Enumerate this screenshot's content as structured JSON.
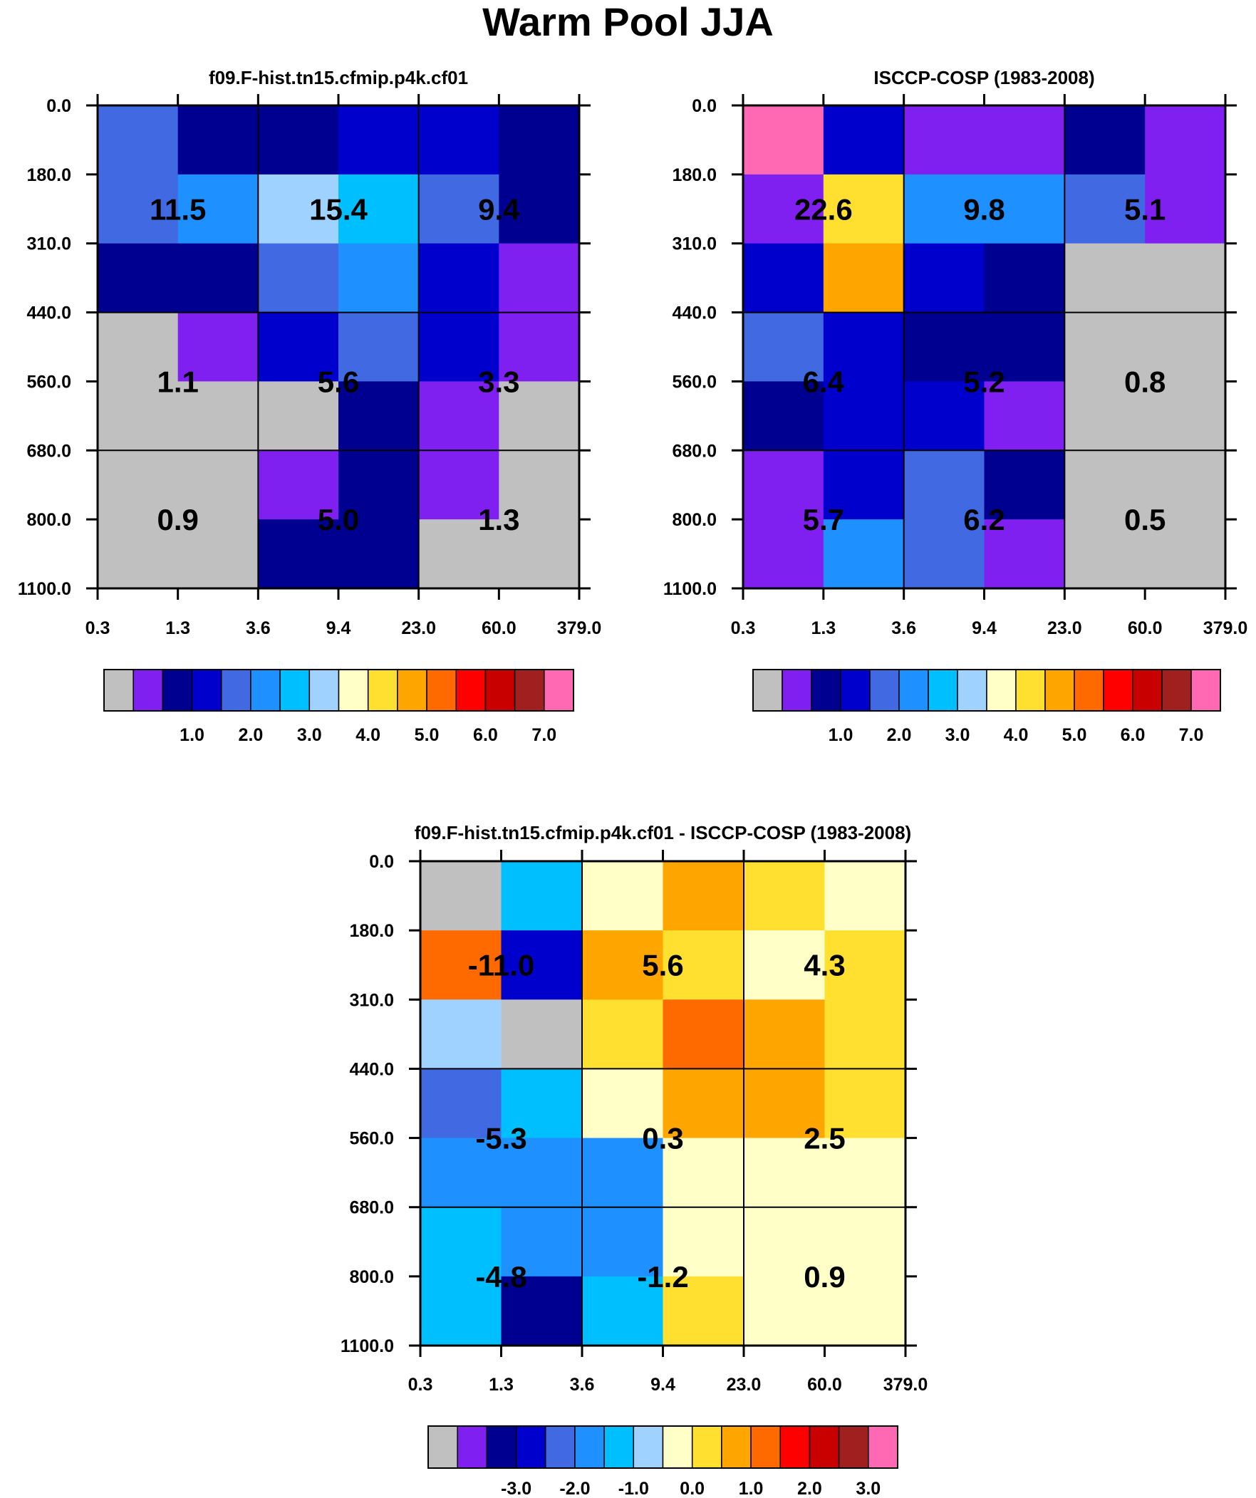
{
  "figure_title": "Warm Pool JJA",
  "chart_data": [
    {
      "type": "heatmap",
      "title": "f09.F-hist.tn15.cfmip.p4k.cf01",
      "x_tick_labels": [
        "0.3",
        "1.3",
        "3.6",
        "9.4",
        "23.0",
        "60.0",
        "379.0"
      ],
      "y_tick_labels": [
        "0.0",
        "180.0",
        "310.0",
        "440.0",
        "560.0",
        "680.0",
        "800.0",
        "1100.0"
      ],
      "colorbar": {
        "colors": [
          "#C0C0C0",
          "#8020F0",
          "#000090",
          "#0000CD",
          "#4169E1",
          "#1E90FF",
          "#00BFFF",
          "#A0D2FF",
          "#FFFFC8",
          "#FFE030",
          "#FFA500",
          "#FF6A00",
          "#FF0000",
          "#C80000",
          "#A02020",
          "#FF69B4"
        ],
        "labels": [
          "1.0",
          "2.0",
          "3.0",
          "4.0",
          "5.0",
          "6.0",
          "7.0"
        ]
      },
      "cells": [
        [
          4,
          2,
          2,
          3,
          3,
          2
        ],
        [
          4,
          5,
          7,
          6,
          4,
          2
        ],
        [
          2,
          2,
          4,
          5,
          3,
          1
        ],
        [
          0,
          1,
          3,
          4,
          3,
          1
        ],
        [
          0,
          0,
          0,
          2,
          1,
          0
        ],
        [
          0,
          0,
          1,
          2,
          1,
          0
        ],
        [
          0,
          0,
          2,
          2,
          0,
          0
        ]
      ],
      "sums": [
        [
          "11.5",
          "15.4",
          "9.4"
        ],
        [
          "1.1",
          "5.6",
          "3.3"
        ],
        [
          "0.9",
          "5.0",
          "1.3"
        ]
      ]
    },
    {
      "type": "heatmap",
      "title": "ISCCP-COSP (1983-2008)",
      "x_tick_labels": [
        "0.3",
        "1.3",
        "3.6",
        "9.4",
        "23.0",
        "60.0",
        "379.0"
      ],
      "y_tick_labels": [
        "0.0",
        "180.0",
        "310.0",
        "440.0",
        "560.0",
        "680.0",
        "800.0",
        "1100.0"
      ],
      "colorbar": {
        "colors": [
          "#C0C0C0",
          "#8020F0",
          "#000090",
          "#0000CD",
          "#4169E1",
          "#1E90FF",
          "#00BFFF",
          "#A0D2FF",
          "#FFFFC8",
          "#FFE030",
          "#FFA500",
          "#FF6A00",
          "#FF0000",
          "#C80000",
          "#A02020",
          "#FF69B4"
        ],
        "labels": [
          "1.0",
          "2.0",
          "3.0",
          "4.0",
          "5.0",
          "6.0",
          "7.0"
        ]
      },
      "cells": [
        [
          15,
          3,
          1,
          1,
          2,
          1
        ],
        [
          1,
          9,
          5,
          5,
          4,
          1
        ],
        [
          3,
          10,
          3,
          2,
          0,
          0
        ],
        [
          4,
          3,
          2,
          2,
          0,
          0
        ],
        [
          2,
          3,
          3,
          1,
          0,
          0
        ],
        [
          1,
          3,
          4,
          2,
          0,
          0
        ],
        [
          1,
          5,
          4,
          1,
          0,
          0
        ]
      ],
      "sums": [
        [
          "22.6",
          "9.8",
          "5.1"
        ],
        [
          "6.4",
          "5.2",
          "0.8"
        ],
        [
          "5.7",
          "6.2",
          "0.5"
        ]
      ]
    },
    {
      "type": "heatmap",
      "title": "f09.F-hist.tn15.cfmip.p4k.cf01 - ISCCP-COSP (1983-2008)",
      "x_tick_labels": [
        "0.3",
        "1.3",
        "3.6",
        "9.4",
        "23.0",
        "60.0",
        "379.0"
      ],
      "y_tick_labels": [
        "0.0",
        "180.0",
        "310.0",
        "440.0",
        "560.0",
        "680.0",
        "800.0",
        "1100.0"
      ],
      "colorbar": {
        "colors": [
          "#C0C0C0",
          "#8020F0",
          "#000090",
          "#0000CD",
          "#4169E1",
          "#1E90FF",
          "#00BFFF",
          "#A0D2FF",
          "#FFFFC8",
          "#FFE030",
          "#FFA500",
          "#FF6A00",
          "#FF0000",
          "#C80000",
          "#A02020",
          "#FF69B4"
        ],
        "labels": [
          "-3.0",
          "-2.0",
          "-1.0",
          "0.0",
          "1.0",
          "2.0",
          "3.0"
        ]
      },
      "cells": [
        [
          0,
          6,
          8,
          10,
          9,
          8
        ],
        [
          11,
          3,
          10,
          9,
          8,
          9
        ],
        [
          7,
          0,
          9,
          11,
          10,
          9
        ],
        [
          4,
          6,
          8,
          10,
          10,
          9
        ],
        [
          5,
          5,
          5,
          8,
          8,
          8
        ],
        [
          6,
          5,
          5,
          8,
          8,
          8
        ],
        [
          6,
          2,
          6,
          9,
          8,
          8
        ]
      ],
      "sums": [
        [
          "-11.0",
          "5.6",
          "4.3"
        ],
        [
          "-5.3",
          "0.3",
          "2.5"
        ],
        [
          "-4.8",
          "-1.2",
          "0.9"
        ]
      ]
    }
  ]
}
